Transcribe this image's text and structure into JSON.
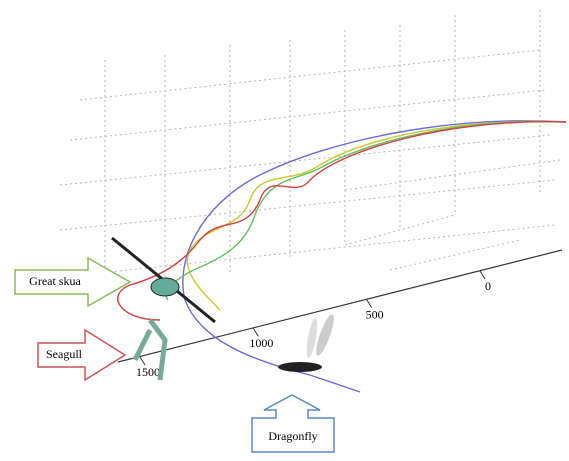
{
  "callouts": {
    "great_skua": "Great skua",
    "seagull": "Seagull",
    "dragonfly": "Dragonfly"
  },
  "axis": {
    "ticks": [
      0,
      500,
      1000,
      1500
    ]
  }
}
